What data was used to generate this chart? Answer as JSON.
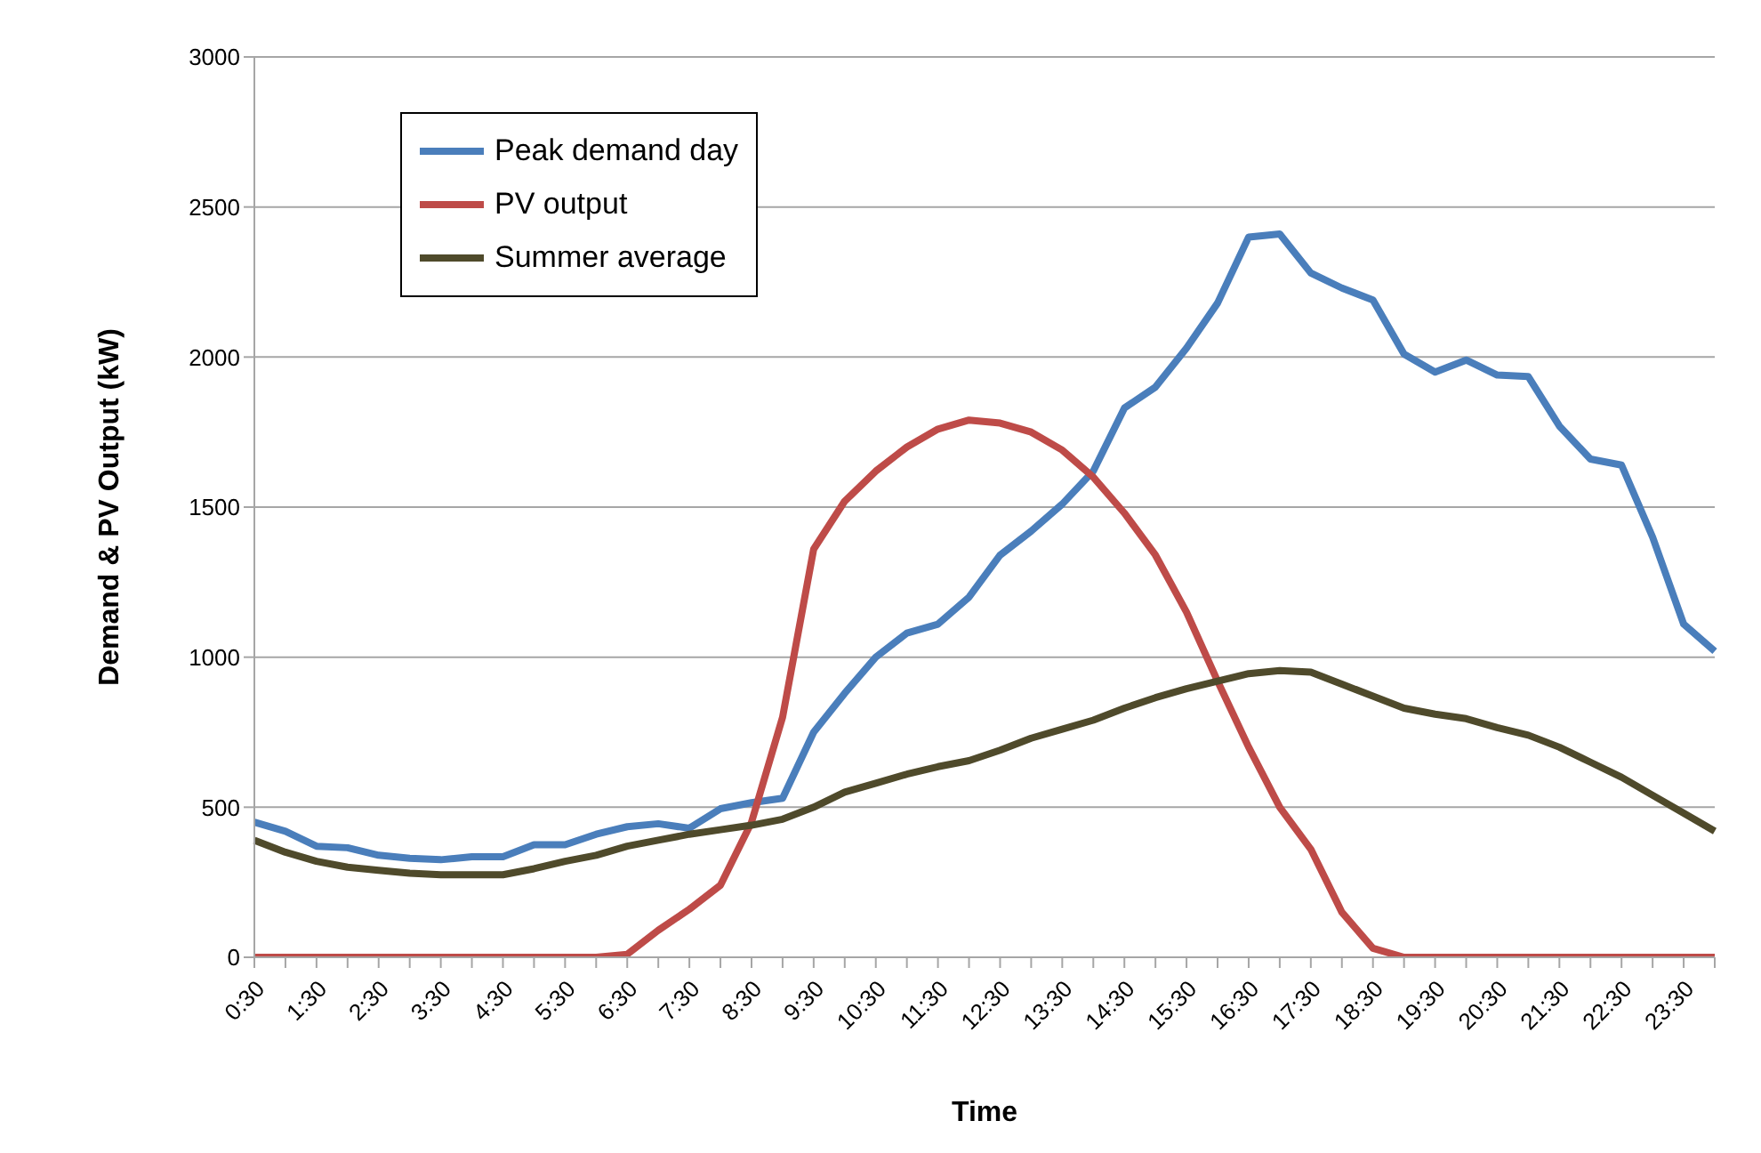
{
  "chart_data": {
    "type": "line",
    "xlabel": "Time",
    "ylabel": "Demand  & PV Output (kW)",
    "categories": [
      "0:30",
      null,
      "1:30",
      null,
      "2:30",
      null,
      "3:30",
      null,
      "4:30",
      null,
      "5:30",
      null,
      "6:30",
      null,
      "7:30",
      null,
      "8:30",
      null,
      "9:30",
      null,
      "10:30",
      null,
      "11:30",
      null,
      "12:30",
      null,
      "13:30",
      null,
      "14:30",
      null,
      "15:30",
      null,
      "16:30",
      null,
      "17:30",
      null,
      "18:30",
      null,
      "19:30",
      null,
      "20:30",
      null,
      "21:30",
      null,
      "22:30",
      null,
      "23:30",
      null
    ],
    "series": [
      {
        "name": "Peak demand day",
        "color": "#4a7ebb",
        "values": [
          450,
          420,
          370,
          365,
          340,
          330,
          325,
          335,
          335,
          375,
          375,
          410,
          435,
          445,
          430,
          495,
          515,
          530,
          750,
          880,
          1000,
          1080,
          1110,
          1200,
          1340,
          1420,
          1510,
          1620,
          1830,
          1900,
          2030,
          2180,
          2400,
          2410,
          2280,
          2230,
          2190,
          2010,
          1950,
          1990,
          1940,
          1935,
          1770,
          1660,
          1640,
          1400,
          1110,
          1020
        ]
      },
      {
        "name": "PV output",
        "color": "#be4b48",
        "values": [
          0,
          0,
          0,
          0,
          0,
          0,
          0,
          0,
          0,
          0,
          0,
          0,
          10,
          90,
          160,
          240,
          450,
          800,
          1360,
          1520,
          1620,
          1700,
          1760,
          1790,
          1780,
          1750,
          1690,
          1600,
          1480,
          1340,
          1150,
          920,
          700,
          500,
          360,
          150,
          30,
          0,
          0,
          0,
          0,
          0,
          0,
          0,
          0,
          0,
          0,
          0
        ]
      },
      {
        "name": "Summer average",
        "color": "#4f4a2b",
        "values": [
          390,
          350,
          320,
          300,
          290,
          280,
          275,
          275,
          275,
          295,
          320,
          340,
          370,
          390,
          410,
          425,
          440,
          460,
          500,
          550,
          580,
          610,
          635,
          655,
          690,
          730,
          760,
          790,
          830,
          865,
          895,
          920,
          945,
          955,
          950,
          910,
          870,
          830,
          810,
          795,
          765,
          740,
          700,
          650,
          600,
          540,
          480,
          420
        ]
      }
    ],
    "ylim": [
      0,
      3000
    ],
    "yticks": [
      0,
      500,
      1000,
      1500,
      2000,
      2500,
      3000
    ],
    "grid": "y",
    "legend": "top left",
    "marker": "none",
    "line_style": "solid"
  }
}
